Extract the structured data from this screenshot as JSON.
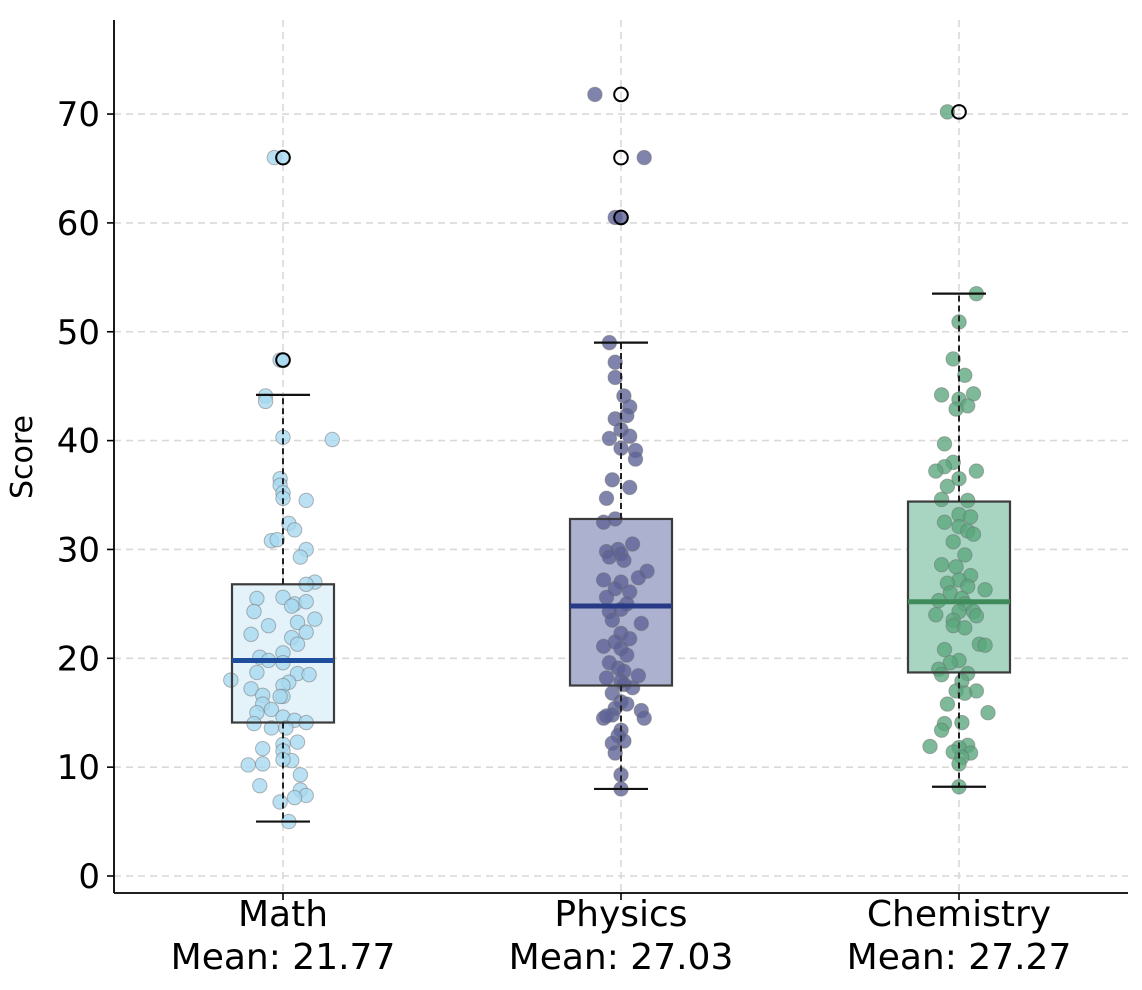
{
  "chart_data": {
    "type": "box",
    "xlabel": "",
    "ylabel": "Score",
    "ylim": [
      -1.5,
      79
    ],
    "yticks": [
      0,
      10,
      20,
      30,
      40,
      50,
      60,
      70
    ],
    "grid": true,
    "categories": [
      {
        "name": "Math",
        "mean_label": "Mean: 21.77",
        "box_color": "#e4f2f9",
        "median_color": "#1f4e9c",
        "point_color": "#a7d8f0",
        "stats": {
          "whisker_low": 5.0,
          "q1": 14.1,
          "median": 19.8,
          "q3": 26.8,
          "whisker_high": 44.2
        },
        "outliers": [
          47.4,
          66.0
        ],
        "points": [
          [
            -0.03,
            66.0
          ],
          [
            0.0,
            66.0
          ],
          [
            -0.01,
            47.4
          ],
          [
            0.0,
            47.4
          ],
          [
            -0.06,
            44.1
          ],
          [
            -0.06,
            43.6
          ],
          [
            0.17,
            40.1
          ],
          [
            0.0,
            40.3
          ],
          [
            -0.01,
            36.5
          ],
          [
            -0.01,
            35.9
          ],
          [
            0.0,
            35.2
          ],
          [
            0.0,
            34.7
          ],
          [
            0.08,
            34.5
          ],
          [
            0.02,
            32.4
          ],
          [
            0.04,
            31.8
          ],
          [
            -0.04,
            30.8
          ],
          [
            -0.02,
            30.9
          ],
          [
            0.08,
            30.0
          ],
          [
            0.06,
            29.3
          ],
          [
            0.11,
            27.0
          ],
          [
            0.08,
            26.8
          ],
          [
            0.0,
            25.6
          ],
          [
            -0.09,
            25.5
          ],
          [
            0.04,
            25.0
          ],
          [
            0.08,
            25.2
          ],
          [
            0.03,
            24.8
          ],
          [
            -0.1,
            24.3
          ],
          [
            0.05,
            23.3
          ],
          [
            0.11,
            23.6
          ],
          [
            -0.05,
            23.0
          ],
          [
            0.08,
            22.4
          ],
          [
            -0.11,
            22.2
          ],
          [
            0.03,
            21.9
          ],
          [
            0.05,
            21.3
          ],
          [
            0.0,
            20.5
          ],
          [
            -0.08,
            20.1
          ],
          [
            -0.05,
            19.8
          ],
          [
            0.0,
            19.6
          ],
          [
            -0.09,
            18.7
          ],
          [
            0.05,
            18.6
          ],
          [
            0.09,
            18.5
          ],
          [
            -0.18,
            18.0
          ],
          [
            0.02,
            17.8
          ],
          [
            0.0,
            17.5
          ],
          [
            -0.11,
            17.2
          ],
          [
            -0.07,
            16.6
          ],
          [
            0.0,
            16.5
          ],
          [
            -0.01,
            16.5
          ],
          [
            -0.07,
            15.8
          ],
          [
            -0.04,
            15.3
          ],
          [
            -0.09,
            15.0
          ],
          [
            0.0,
            14.6
          ],
          [
            0.04,
            14.3
          ],
          [
            0.08,
            14.1
          ],
          [
            -0.1,
            14.0
          ],
          [
            -0.04,
            13.6
          ],
          [
            0.01,
            13.6
          ],
          [
            0.05,
            12.3
          ],
          [
            0.0,
            12.1
          ],
          [
            -0.07,
            11.7
          ],
          [
            0.0,
            11.5
          ],
          [
            0.03,
            10.6
          ],
          [
            0.0,
            10.7
          ],
          [
            -0.07,
            10.3
          ],
          [
            -0.12,
            10.2
          ],
          [
            0.06,
            9.3
          ],
          [
            -0.08,
            8.3
          ],
          [
            0.06,
            7.9
          ],
          [
            0.08,
            7.4
          ],
          [
            0.04,
            7.2
          ],
          [
            -0.01,
            6.8
          ],
          [
            0.02,
            5.0
          ]
        ]
      },
      {
        "name": "Physics",
        "mean_label": "Mean: 27.03",
        "box_color": "#adb1d0",
        "median_color": "#283a86",
        "point_color": "#5c6296",
        "stats": {
          "whisker_low": 8.0,
          "q1": 17.5,
          "median": 24.8,
          "q3": 32.8,
          "whisker_high": 49.0
        },
        "outliers": [
          60.5,
          66.0,
          71.8
        ],
        "points": [
          [
            -0.09,
            71.8
          ],
          [
            0.08,
            66.0
          ],
          [
            -0.02,
            60.5
          ],
          [
            0.0,
            60.5
          ],
          [
            -0.04,
            49.0
          ],
          [
            -0.02,
            47.2
          ],
          [
            -0.02,
            45.8
          ],
          [
            0.01,
            44.1
          ],
          [
            0.03,
            43.1
          ],
          [
            -0.02,
            42.0
          ],
          [
            0.02,
            42.3
          ],
          [
            0.0,
            41.0
          ],
          [
            -0.04,
            40.2
          ],
          [
            0.03,
            40.4
          ],
          [
            0.0,
            39.3
          ],
          [
            0.05,
            39.1
          ],
          [
            0.05,
            38.3
          ],
          [
            -0.03,
            36.4
          ],
          [
            0.03,
            35.7
          ],
          [
            -0.05,
            34.7
          ],
          [
            -0.06,
            32.5
          ],
          [
            -0.02,
            32.8
          ],
          [
            0.04,
            30.5
          ],
          [
            -0.01,
            30.0
          ],
          [
            -0.05,
            29.8
          ],
          [
            0.0,
            29.6
          ],
          [
            -0.04,
            29.3
          ],
          [
            0.01,
            29.0
          ],
          [
            0.09,
            28.0
          ],
          [
            0.06,
            27.4
          ],
          [
            -0.06,
            27.2
          ],
          [
            0.0,
            27.0
          ],
          [
            -0.02,
            26.4
          ],
          [
            0.03,
            26.1
          ],
          [
            -0.05,
            25.6
          ],
          [
            0.02,
            25.0
          ],
          [
            0.0,
            24.5
          ],
          [
            -0.04,
            24.3
          ],
          [
            -0.03,
            23.5
          ],
          [
            0.07,
            23.2
          ],
          [
            0.0,
            22.3
          ],
          [
            0.03,
            21.8
          ],
          [
            -0.02,
            21.5
          ],
          [
            -0.06,
            21.1
          ],
          [
            0.0,
            20.9
          ],
          [
            0.02,
            20.3
          ],
          [
            -0.04,
            19.6
          ],
          [
            -0.01,
            19.1
          ],
          [
            0.01,
            18.8
          ],
          [
            0.06,
            18.4
          ],
          [
            -0.05,
            18.2
          ],
          [
            0.0,
            17.9
          ],
          [
            0.01,
            17.6
          ],
          [
            0.04,
            17.3
          ],
          [
            -0.03,
            16.8
          ],
          [
            0.0,
            16.0
          ],
          [
            0.02,
            15.8
          ],
          [
            -0.02,
            15.4
          ],
          [
            0.07,
            15.2
          ],
          [
            -0.03,
            14.8
          ],
          [
            -0.06,
            14.5
          ],
          [
            -0.05,
            14.7
          ],
          [
            0.08,
            14.5
          ],
          [
            0.0,
            13.4
          ],
          [
            -0.01,
            12.9
          ],
          [
            -0.03,
            12.2
          ],
          [
            0.01,
            12.4
          ],
          [
            -0.02,
            11.3
          ],
          [
            0.0,
            9.3
          ],
          [
            0.0,
            8.0
          ]
        ]
      },
      {
        "name": "Chemistry",
        "mean_label": "Mean: 27.27",
        "box_color": "#a8d4c2",
        "median_color": "#3f8c5a",
        "point_color": "#5aa67c",
        "stats": {
          "whisker_low": 8.2,
          "q1": 18.7,
          "median": 25.2,
          "q3": 34.4,
          "whisker_high": 53.5
        },
        "outliers": [
          70.2
        ],
        "points": [
          [
            -0.04,
            70.2
          ],
          [
            0.06,
            53.5
          ],
          [
            0.0,
            50.9
          ],
          [
            -0.02,
            47.5
          ],
          [
            0.02,
            46.0
          ],
          [
            -0.06,
            44.2
          ],
          [
            0.0,
            43.8
          ],
          [
            0.05,
            44.3
          ],
          [
            0.03,
            43.2
          ],
          [
            -0.01,
            42.9
          ],
          [
            -0.05,
            39.7
          ],
          [
            -0.02,
            38.0
          ],
          [
            -0.05,
            37.6
          ],
          [
            -0.08,
            37.2
          ],
          [
            0.06,
            37.2
          ],
          [
            0.0,
            36.5
          ],
          [
            -0.04,
            35.8
          ],
          [
            -0.06,
            34.6
          ],
          [
            0.03,
            34.5
          ],
          [
            0.0,
            33.2
          ],
          [
            0.04,
            33.0
          ],
          [
            -0.05,
            32.5
          ],
          [
            0.0,
            32.1
          ],
          [
            0.03,
            31.7
          ],
          [
            0.05,
            31.4
          ],
          [
            -0.02,
            30.7
          ],
          [
            0.02,
            29.5
          ],
          [
            -0.06,
            28.6
          ],
          [
            -0.01,
            28.4
          ],
          [
            0.04,
            27.6
          ],
          [
            0.0,
            27.2
          ],
          [
            -0.04,
            26.9
          ],
          [
            0.03,
            26.6
          ],
          [
            0.09,
            26.3
          ],
          [
            -0.03,
            26.0
          ],
          [
            0.01,
            25.5
          ],
          [
            -0.07,
            25.3
          ],
          [
            0.02,
            25.0
          ],
          [
            0.05,
            24.3
          ],
          [
            -0.08,
            24.0
          ],
          [
            0.0,
            24.3
          ],
          [
            -0.02,
            23.5
          ],
          [
            0.06,
            23.9
          ],
          [
            -0.02,
            23.0
          ],
          [
            0.02,
            22.8
          ],
          [
            0.07,
            21.3
          ],
          [
            0.09,
            21.2
          ],
          [
            -0.05,
            20.8
          ],
          [
            0.0,
            19.8
          ],
          [
            -0.03,
            19.6
          ],
          [
            -0.07,
            19.0
          ],
          [
            0.03,
            18.6
          ],
          [
            -0.06,
            18.5
          ],
          [
            0.01,
            17.9
          ],
          [
            -0.01,
            17.0
          ],
          [
            0.06,
            17.0
          ],
          [
            0.02,
            16.8
          ],
          [
            0.1,
            15.0
          ],
          [
            -0.04,
            15.8
          ],
          [
            -0.05,
            14.0
          ],
          [
            0.01,
            14.1
          ],
          [
            -0.06,
            13.4
          ],
          [
            0.03,
            12.0
          ],
          [
            0.0,
            11.8
          ],
          [
            -0.1,
            11.9
          ],
          [
            -0.02,
            11.4
          ],
          [
            0.04,
            11.3
          ],
          [
            0.01,
            10.9
          ],
          [
            0.0,
            10.3
          ],
          [
            0.0,
            8.2
          ]
        ]
      }
    ]
  }
}
